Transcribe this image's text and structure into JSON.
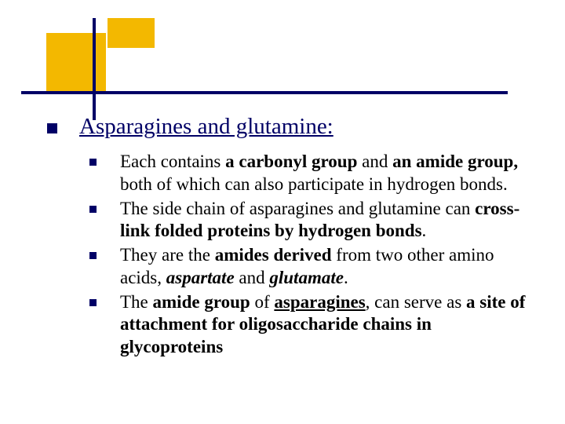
{
  "colors": {
    "accent_orange": "#f3b800",
    "accent_navy": "#000066",
    "background": "#ffffff",
    "text": "#000000"
  },
  "heading": "Asparagines and glutamine:",
  "heading_fontsize": 29,
  "body_fontsize": 23,
  "bullets": {
    "0": {
      "pre1": "Each contains ",
      "b1": "a carbonyl group ",
      "mid1": "and ",
      "b2": "an amide group, ",
      "post": "both of which can also participate in hydrogen bonds."
    },
    "1": {
      "pre": "The side chain of asparagines and glutamine can ",
      "b": "cross-link folded proteins by hydrogen bonds",
      "post": "."
    },
    "2": {
      "pre": "They are the ",
      "b1": "amides derived ",
      "mid": "from two other amino acids, ",
      "bi1": "aspartate",
      "mid2": " and ",
      "bi2": "glutamate",
      "post": "."
    },
    "3": {
      "pre": "The ",
      "b1": "amide group ",
      "mid1": "of ",
      "bu": "asparagines",
      "mid2": ", can serve as ",
      "b2": "a site of attachment for oligosaccharide chains in glycoproteins"
    }
  }
}
